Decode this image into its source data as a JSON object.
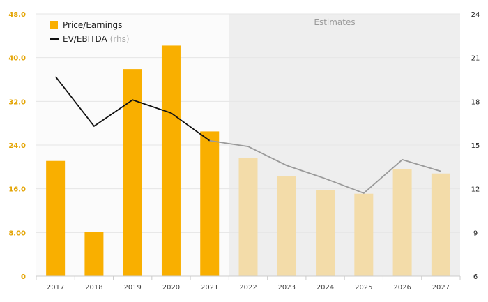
{
  "chart_data": {
    "type": "bar",
    "categories": [
      "2017",
      "2018",
      "2019",
      "2020",
      "2021",
      "2022",
      "2023",
      "2024",
      "2025",
      "2026",
      "2027"
    ],
    "estimates_from": "2022",
    "estimates_label": "Estimates",
    "series": [
      {
        "name": "Price/Earnings",
        "type": "bar",
        "axis": "left",
        "values": [
          21.1,
          8.1,
          37.9,
          42.2,
          26.5,
          21.6,
          18.3,
          15.8,
          15.1,
          19.6,
          18.8
        ]
      },
      {
        "name": "EV/EBITDA",
        "name_suffix": "(rhs)",
        "type": "line",
        "axis": "right",
        "values": [
          19.7,
          16.3,
          18.1,
          17.2,
          15.3,
          14.9,
          13.6,
          12.7,
          11.7,
          14.0,
          13.2
        ]
      }
    ],
    "y_left": {
      "ticks": [
        "0",
        "8.00",
        "16.0",
        "24.0",
        "32.0",
        "40.0",
        "48.0"
      ],
      "range": [
        0,
        48
      ]
    },
    "y_right": {
      "ticks": [
        "6",
        "9",
        "12",
        "15",
        "18",
        "21",
        "24"
      ],
      "range": [
        6,
        24
      ]
    },
    "grid": true,
    "legend_position": "top-left",
    "colors": {
      "bar": "#F9AF00",
      "bar_estimate": "#F3DCA9",
      "line": "#111111",
      "line_estimate": "#9A9A9A",
      "left_axis_text": "#E3A300",
      "right_axis_text": "#222222",
      "estimate_bg": "#EEEEEE",
      "plot_bg": "#FBFBFB",
      "grid": "#E6E6E6"
    }
  }
}
